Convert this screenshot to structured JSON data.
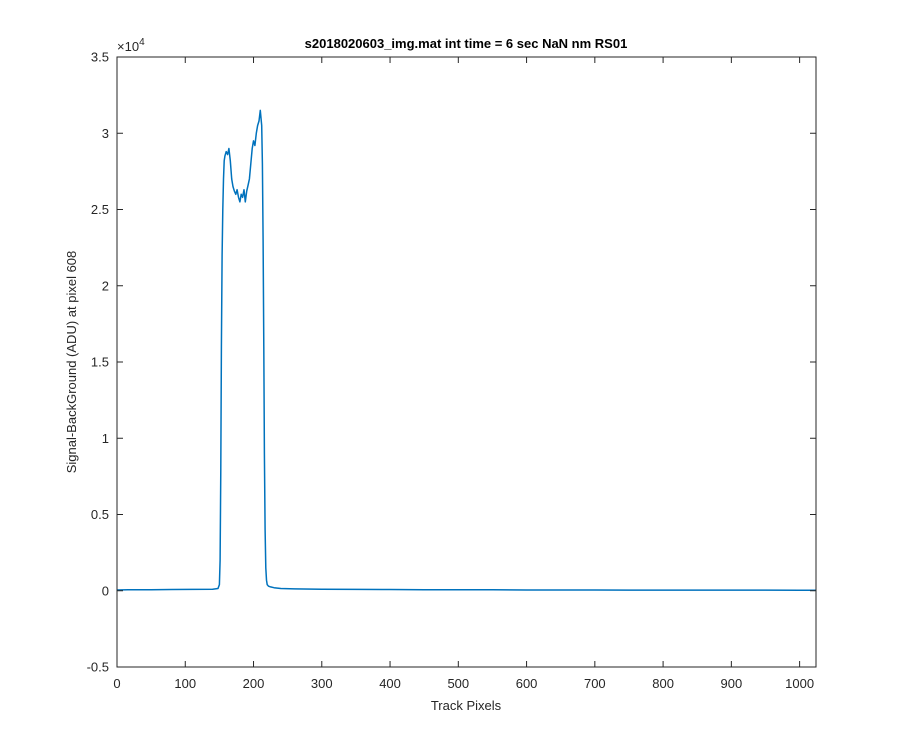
{
  "chart_data": {
    "type": "line",
    "title": "s2018020603_img.mat int time = 6 sec  NaN nm RS01",
    "xlabel": "Track Pixels",
    "ylabel": "Signal-BackGround (ADU) at pixel 608",
    "y_exponent_label": "×10",
    "y_exponent_power": "4",
    "xlim": [
      0,
      1024
    ],
    "ylim": [
      -0.5,
      3.5
    ],
    "x_ticks": [
      "0",
      "100",
      "200",
      "300",
      "400",
      "500",
      "600",
      "700",
      "800",
      "900",
      "1000"
    ],
    "y_ticks": [
      "-0.5",
      "0",
      "0.5",
      "1",
      "1.5",
      "2",
      "2.5",
      "3",
      "3.5"
    ],
    "grid": false,
    "line_color": "#0072BD",
    "series": [
      {
        "x": [
          0,
          20,
          50,
          80,
          110,
          140,
          148,
          150,
          151,
          152,
          153,
          154,
          155,
          156,
          157,
          158,
          160,
          162,
          164,
          166,
          168,
          170,
          172,
          174,
          176,
          178,
          180,
          182,
          184,
          186,
          188,
          190,
          192,
          194,
          196,
          198,
          200,
          202,
          204,
          206,
          208,
          210,
          212,
          213,
          214,
          215,
          216,
          217,
          218,
          219,
          220,
          222,
          225,
          230,
          240,
          260,
          300,
          350,
          400,
          450,
          500,
          550,
          600,
          650,
          700,
          750,
          800,
          850,
          900,
          950,
          1000,
          1024
        ],
        "y": [
          0.005,
          0.007,
          0.006,
          0.008,
          0.009,
          0.01,
          0.015,
          0.04,
          0.2,
          0.8,
          1.6,
          2.2,
          2.5,
          2.7,
          2.82,
          2.85,
          2.88,
          2.86,
          2.9,
          2.82,
          2.7,
          2.65,
          2.62,
          2.6,
          2.63,
          2.58,
          2.55,
          2.6,
          2.58,
          2.63,
          2.55,
          2.62,
          2.66,
          2.7,
          2.8,
          2.9,
          2.95,
          2.92,
          3.0,
          3.05,
          3.08,
          3.15,
          3.05,
          2.8,
          2.3,
          1.6,
          0.9,
          0.4,
          0.15,
          0.07,
          0.04,
          0.03,
          0.025,
          0.02,
          0.015,
          0.012,
          0.01,
          0.009,
          0.008,
          0.007,
          0.006,
          0.006,
          0.005,
          0.005,
          0.005,
          0.004,
          0.004,
          0.004,
          0.004,
          0.004,
          0.003,
          0.003
        ]
      }
    ]
  }
}
